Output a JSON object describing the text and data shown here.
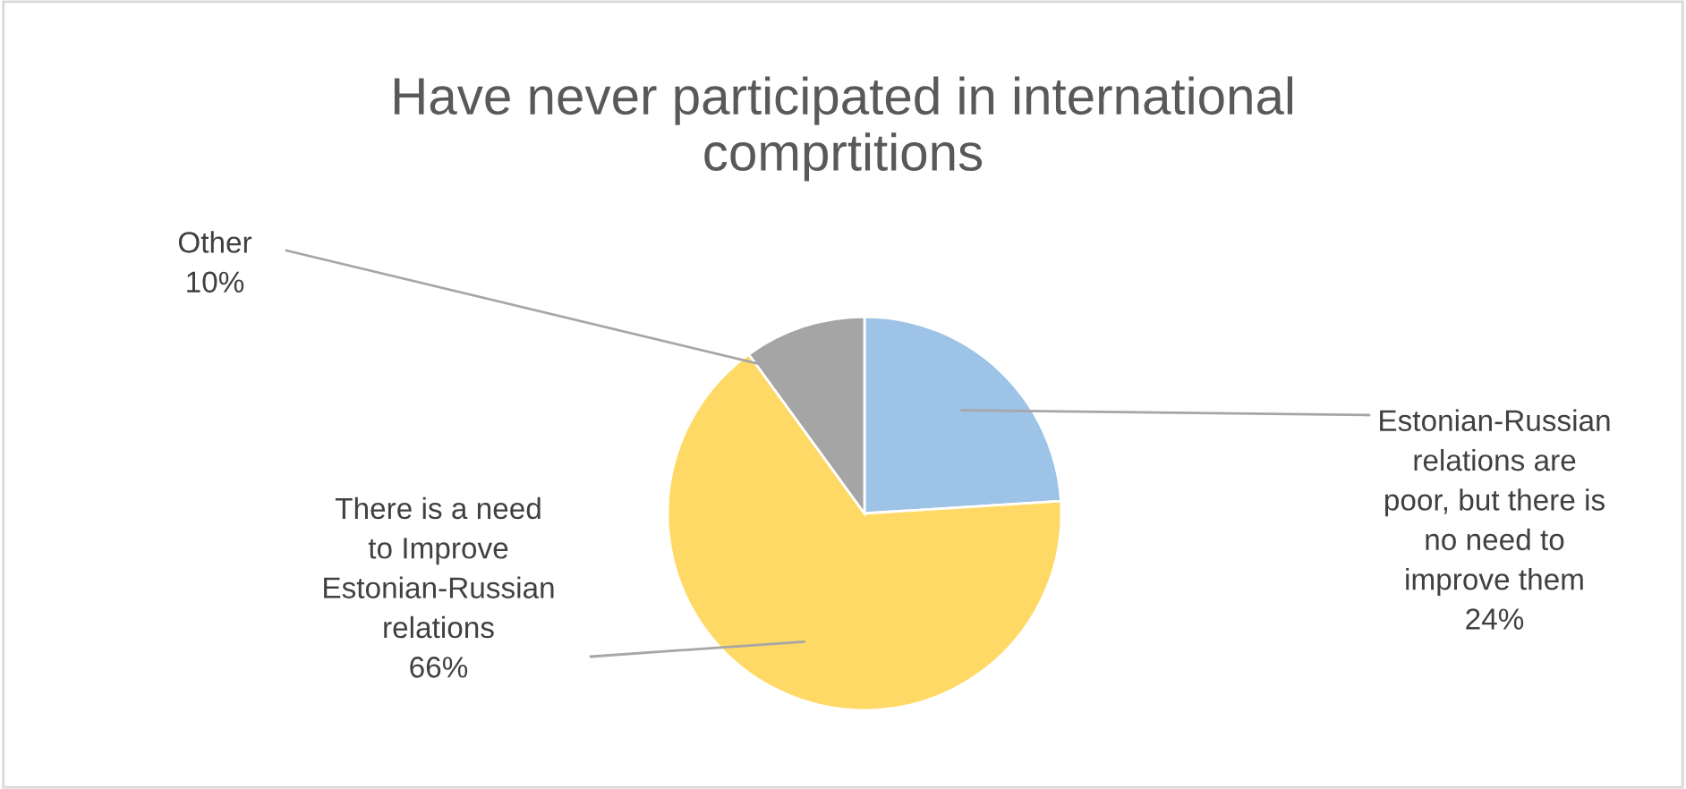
{
  "chart_data": {
    "type": "pie",
    "title": "Have never participated in international\ncomprtitions",
    "categories": [
      "Estonian-Russian\nrelations are\npoor, but there is\nno need to\nimprove them",
      "There is a need\nto Improve\nEstonian-Russian\nrelations",
      "Other"
    ],
    "values": [
      24,
      66,
      10
    ],
    "value_labels": [
      "24%",
      "66%",
      "10%"
    ],
    "colors": [
      "#9dc3e6",
      "#ffd966",
      "#a5a5a5"
    ]
  }
}
